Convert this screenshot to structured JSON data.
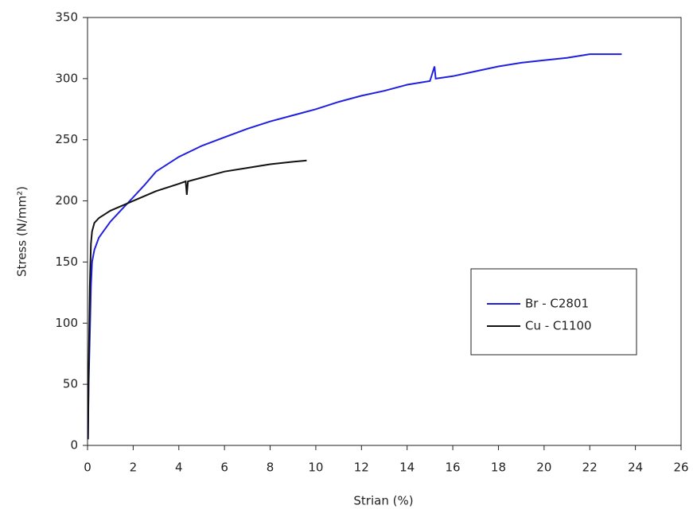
{
  "chart_data": {
    "type": "line",
    "x_label": "Strian (%)",
    "y_label": "Stress (N/mm²)",
    "xlim": [
      0,
      26
    ],
    "xticks": [
      0,
      2,
      4,
      6,
      8,
      10,
      12,
      14,
      16,
      18,
      20,
      22,
      24,
      26
    ],
    "ylim": [
      0,
      350
    ],
    "yticks": [
      0,
      50,
      100,
      150,
      200,
      250,
      300,
      350
    ],
    "grid": false,
    "legend": "right",
    "series": [
      {
        "name": "Br - C2801",
        "color": "#1f1fe0",
        "x": [
          0.02,
          0.05,
          0.1,
          0.15,
          0.2,
          0.3,
          0.5,
          1,
          1.5,
          2,
          2.5,
          3,
          4,
          5,
          6,
          7,
          8,
          9,
          10,
          11,
          12,
          13,
          14,
          15,
          15.2,
          15.25,
          16,
          17,
          18,
          19,
          20,
          21,
          22,
          23.4
        ],
        "values": [
          5,
          50,
          90,
          130,
          150,
          160,
          170,
          183,
          193,
          203,
          213,
          224,
          236,
          245,
          252,
          259,
          265,
          270,
          275,
          281,
          286,
          290,
          295,
          298,
          310,
          300,
          302,
          306,
          310,
          313,
          315,
          317,
          320,
          320
        ]
      },
      {
        "name": "Cu - C1100",
        "color": "#111111",
        "x": [
          0.02,
          0.05,
          0.1,
          0.15,
          0.2,
          0.3,
          0.5,
          1,
          2,
          3,
          4,
          4.3,
          4.35,
          4.4,
          5,
          6,
          7,
          8,
          9,
          9.6
        ],
        "values": [
          5,
          60,
          130,
          165,
          175,
          182,
          186,
          192,
          200,
          208,
          214,
          216,
          205,
          216,
          219,
          224,
          227,
          230,
          232,
          233
        ]
      }
    ]
  }
}
